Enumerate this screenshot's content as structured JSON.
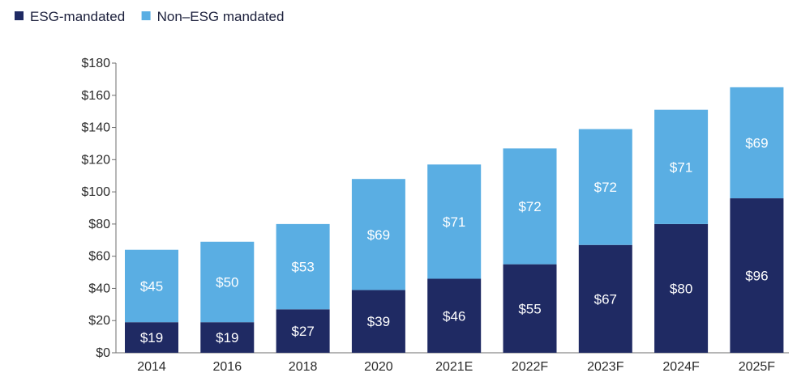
{
  "chart_data": {
    "type": "bar",
    "stacked": true,
    "categories": [
      "2014",
      "2016",
      "2018",
      "2020",
      "2021E",
      "2022F",
      "2023F",
      "2024F",
      "2025F"
    ],
    "series": [
      {
        "name": "ESG-mandated",
        "color": "#1f2a63",
        "values": [
          19,
          19,
          27,
          39,
          46,
          55,
          67,
          80,
          96
        ],
        "labels": [
          "$19",
          "$19",
          "$27",
          "$39",
          "$46",
          "$55",
          "$67",
          "$80",
          "$96"
        ]
      },
      {
        "name": "Non–ESG mandated",
        "color": "#5aaee3",
        "values": [
          45,
          50,
          53,
          69,
          71,
          72,
          72,
          71,
          69
        ],
        "labels": [
          "$45",
          "$50",
          "$53",
          "$69",
          "$71",
          "$72",
          "$72",
          "$71",
          "$69"
        ]
      }
    ],
    "ylim": [
      0,
      180
    ],
    "yticks": [
      0,
      20,
      40,
      60,
      80,
      100,
      120,
      140,
      160,
      180
    ],
    "ytick_labels": [
      "$0",
      "$20",
      "$40",
      "$60",
      "$80",
      "$100",
      "$120",
      "$140",
      "$160",
      "$180"
    ],
    "legend_position": "top-left",
    "grid": false
  }
}
